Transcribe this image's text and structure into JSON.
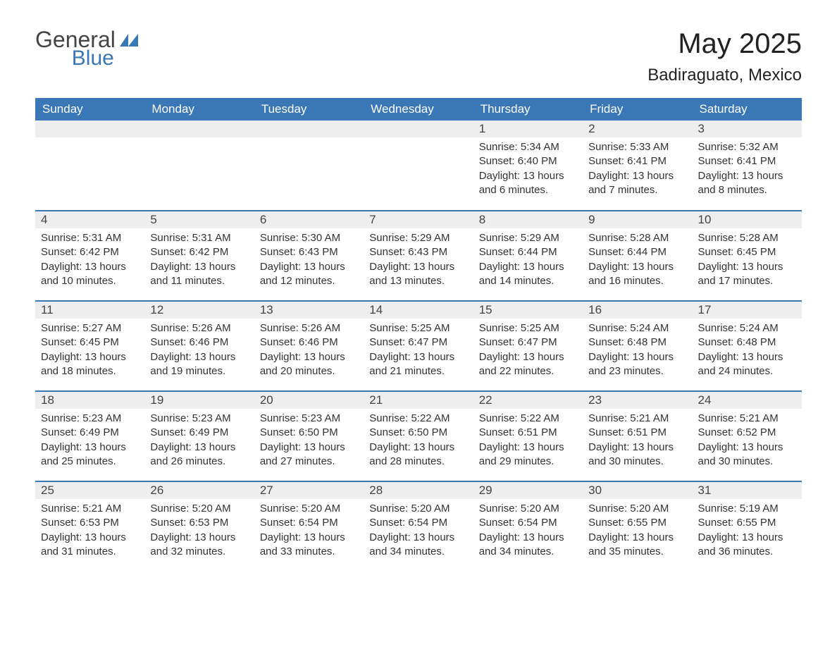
{
  "logo": {
    "general": "General",
    "blue": "Blue"
  },
  "title": "May 2025",
  "location": "Badiraguato, Mexico",
  "colors": {
    "header_bg": "#3a77b7",
    "header_text": "#ffffff",
    "daynum_bg": "#eeeeee",
    "text": "#333333",
    "row_border": "#3a77b7",
    "background": "#ffffff"
  },
  "weekdays": [
    "Sunday",
    "Monday",
    "Tuesday",
    "Wednesday",
    "Thursday",
    "Friday",
    "Saturday"
  ],
  "labels": {
    "sunrise": "Sunrise: ",
    "sunset": "Sunset: ",
    "daylight": "Daylight: "
  },
  "weeks": [
    [
      null,
      null,
      null,
      null,
      {
        "day": "1",
        "sunrise": "5:34 AM",
        "sunset": "6:40 PM",
        "daylight": "13 hours and 6 minutes."
      },
      {
        "day": "2",
        "sunrise": "5:33 AM",
        "sunset": "6:41 PM",
        "daylight": "13 hours and 7 minutes."
      },
      {
        "day": "3",
        "sunrise": "5:32 AM",
        "sunset": "6:41 PM",
        "daylight": "13 hours and 8 minutes."
      }
    ],
    [
      {
        "day": "4",
        "sunrise": "5:31 AM",
        "sunset": "6:42 PM",
        "daylight": "13 hours and 10 minutes."
      },
      {
        "day": "5",
        "sunrise": "5:31 AM",
        "sunset": "6:42 PM",
        "daylight": "13 hours and 11 minutes."
      },
      {
        "day": "6",
        "sunrise": "5:30 AM",
        "sunset": "6:43 PM",
        "daylight": "13 hours and 12 minutes."
      },
      {
        "day": "7",
        "sunrise": "5:29 AM",
        "sunset": "6:43 PM",
        "daylight": "13 hours and 13 minutes."
      },
      {
        "day": "8",
        "sunrise": "5:29 AM",
        "sunset": "6:44 PM",
        "daylight": "13 hours and 14 minutes."
      },
      {
        "day": "9",
        "sunrise": "5:28 AM",
        "sunset": "6:44 PM",
        "daylight": "13 hours and 16 minutes."
      },
      {
        "day": "10",
        "sunrise": "5:28 AM",
        "sunset": "6:45 PM",
        "daylight": "13 hours and 17 minutes."
      }
    ],
    [
      {
        "day": "11",
        "sunrise": "5:27 AM",
        "sunset": "6:45 PM",
        "daylight": "13 hours and 18 minutes."
      },
      {
        "day": "12",
        "sunrise": "5:26 AM",
        "sunset": "6:46 PM",
        "daylight": "13 hours and 19 minutes."
      },
      {
        "day": "13",
        "sunrise": "5:26 AM",
        "sunset": "6:46 PM",
        "daylight": "13 hours and 20 minutes."
      },
      {
        "day": "14",
        "sunrise": "5:25 AM",
        "sunset": "6:47 PM",
        "daylight": "13 hours and 21 minutes."
      },
      {
        "day": "15",
        "sunrise": "5:25 AM",
        "sunset": "6:47 PM",
        "daylight": "13 hours and 22 minutes."
      },
      {
        "day": "16",
        "sunrise": "5:24 AM",
        "sunset": "6:48 PM",
        "daylight": "13 hours and 23 minutes."
      },
      {
        "day": "17",
        "sunrise": "5:24 AM",
        "sunset": "6:48 PM",
        "daylight": "13 hours and 24 minutes."
      }
    ],
    [
      {
        "day": "18",
        "sunrise": "5:23 AM",
        "sunset": "6:49 PM",
        "daylight": "13 hours and 25 minutes."
      },
      {
        "day": "19",
        "sunrise": "5:23 AM",
        "sunset": "6:49 PM",
        "daylight": "13 hours and 26 minutes."
      },
      {
        "day": "20",
        "sunrise": "5:23 AM",
        "sunset": "6:50 PM",
        "daylight": "13 hours and 27 minutes."
      },
      {
        "day": "21",
        "sunrise": "5:22 AM",
        "sunset": "6:50 PM",
        "daylight": "13 hours and 28 minutes."
      },
      {
        "day": "22",
        "sunrise": "5:22 AM",
        "sunset": "6:51 PM",
        "daylight": "13 hours and 29 minutes."
      },
      {
        "day": "23",
        "sunrise": "5:21 AM",
        "sunset": "6:51 PM",
        "daylight": "13 hours and 30 minutes."
      },
      {
        "day": "24",
        "sunrise": "5:21 AM",
        "sunset": "6:52 PM",
        "daylight": "13 hours and 30 minutes."
      }
    ],
    [
      {
        "day": "25",
        "sunrise": "5:21 AM",
        "sunset": "6:53 PM",
        "daylight": "13 hours and 31 minutes."
      },
      {
        "day": "26",
        "sunrise": "5:20 AM",
        "sunset": "6:53 PM",
        "daylight": "13 hours and 32 minutes."
      },
      {
        "day": "27",
        "sunrise": "5:20 AM",
        "sunset": "6:54 PM",
        "daylight": "13 hours and 33 minutes."
      },
      {
        "day": "28",
        "sunrise": "5:20 AM",
        "sunset": "6:54 PM",
        "daylight": "13 hours and 34 minutes."
      },
      {
        "day": "29",
        "sunrise": "5:20 AM",
        "sunset": "6:54 PM",
        "daylight": "13 hours and 34 minutes."
      },
      {
        "day": "30",
        "sunrise": "5:20 AM",
        "sunset": "6:55 PM",
        "daylight": "13 hours and 35 minutes."
      },
      {
        "day": "31",
        "sunrise": "5:19 AM",
        "sunset": "6:55 PM",
        "daylight": "13 hours and 36 minutes."
      }
    ]
  ]
}
